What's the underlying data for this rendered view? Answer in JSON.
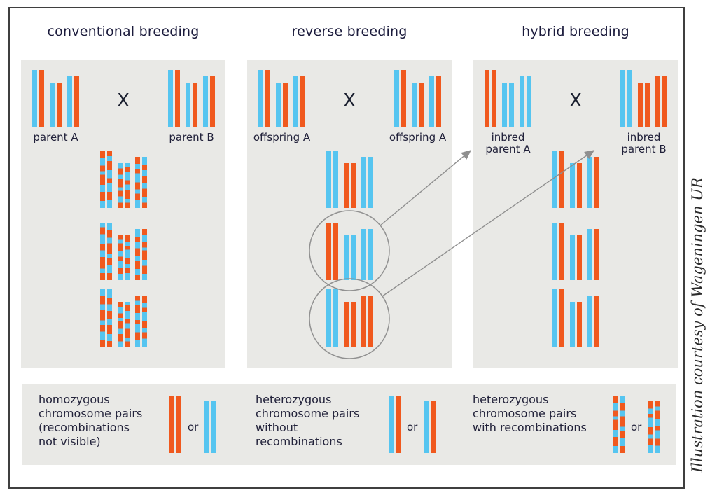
{
  "caption": "Illustration courtesy of Wageningen UR",
  "cross_symbol": "X",
  "or_label": "or",
  "colors": {
    "orange": "#F0591E",
    "blue": "#56C5F0",
    "panel_bg": "#E9E9E6",
    "frame_border": "#3F3F3F",
    "text": "#21213A",
    "annotation": "#8F8F8F"
  },
  "stripes": {
    "sA": [
      [
        "o",
        12
      ],
      [
        "b",
        14
      ],
      [
        "o",
        10
      ],
      [
        "b",
        6
      ],
      [
        "o",
        18
      ],
      [
        "b",
        12
      ],
      [
        "o",
        16
      ],
      [
        "b",
        12
      ]
    ],
    "sB": [
      [
        "o",
        10
      ],
      [
        "b",
        8
      ],
      [
        "o",
        16
      ],
      [
        "b",
        14
      ],
      [
        "o",
        8
      ],
      [
        "b",
        16
      ],
      [
        "o",
        14
      ],
      [
        "b",
        14
      ]
    ],
    "sC": [
      [
        "b",
        12
      ],
      [
        "o",
        14
      ],
      [
        "b",
        10
      ],
      [
        "o",
        18
      ],
      [
        "b",
        8
      ],
      [
        "o",
        12
      ],
      [
        "b",
        14
      ],
      [
        "o",
        12
      ]
    ],
    "sD": [
      [
        "b",
        8
      ],
      [
        "o",
        12
      ],
      [
        "b",
        18
      ],
      [
        "o",
        10
      ],
      [
        "b",
        12
      ],
      [
        "o",
        20
      ],
      [
        "b",
        8
      ],
      [
        "o",
        12
      ]
    ],
    "sE": [
      [
        "o",
        14
      ],
      [
        "b",
        10
      ],
      [
        "o",
        8
      ],
      [
        "b",
        18
      ],
      [
        "o",
        14
      ],
      [
        "b",
        8
      ],
      [
        "o",
        12
      ],
      [
        "b",
        16
      ]
    ],
    "sF": [
      [
        "b",
        16
      ],
      [
        "o",
        10
      ],
      [
        "b",
        12
      ],
      [
        "o",
        14
      ],
      [
        "b",
        10
      ],
      [
        "o",
        16
      ],
      [
        "b",
        12
      ],
      [
        "o",
        10
      ]
    ]
  },
  "panels": [
    {
      "id": "conventional",
      "title": "conventional breeding",
      "left_parent": {
        "label_lines": [
          "parent A"
        ],
        "pairs": [
          [
            "blue",
            "orange"
          ],
          [
            "blue",
            "orange"
          ],
          [
            "blue",
            "orange"
          ]
        ]
      },
      "right_parent": {
        "label_lines": [
          "parent B"
        ],
        "pairs": [
          [
            "blue",
            "orange"
          ],
          [
            "blue",
            "orange"
          ],
          [
            "blue",
            "orange"
          ]
        ]
      },
      "progeny_rows": [
        {
          "circled": false,
          "pairs": [
            [
              "sA",
              "sB"
            ],
            [
              "sC",
              "sD"
            ],
            [
              "sE",
              "sF"
            ]
          ]
        },
        {
          "circled": false,
          "pairs": [
            [
              "sD",
              "sC"
            ],
            [
              "sB",
              "sE"
            ],
            [
              "sF",
              "sA"
            ]
          ]
        },
        {
          "circled": false,
          "pairs": [
            [
              "sC",
              "sF"
            ],
            [
              "sA",
              "sD"
            ],
            [
              "sB",
              "sE"
            ]
          ]
        }
      ]
    },
    {
      "id": "reverse",
      "title": "reverse breeding",
      "left_parent": {
        "label_lines": [
          "offspring A"
        ],
        "pairs": [
          [
            "blue",
            "orange"
          ],
          [
            "blue",
            "orange"
          ],
          [
            "blue",
            "orange"
          ]
        ]
      },
      "right_parent": {
        "label_lines": [
          "offspring A"
        ],
        "pairs": [
          [
            "blue",
            "orange"
          ],
          [
            "blue",
            "orange"
          ],
          [
            "blue",
            "orange"
          ]
        ]
      },
      "progeny_rows": [
        {
          "circled": false,
          "pairs": [
            [
              "blue",
              "blue"
            ],
            [
              "orange",
              "orange"
            ],
            [
              "blue",
              "blue"
            ]
          ]
        },
        {
          "circled": true,
          "pairs": [
            [
              "orange",
              "orange"
            ],
            [
              "blue",
              "blue"
            ],
            [
              "blue",
              "blue"
            ]
          ]
        },
        {
          "circled": true,
          "pairs": [
            [
              "blue",
              "blue"
            ],
            [
              "orange",
              "orange"
            ],
            [
              "orange",
              "orange"
            ]
          ]
        }
      ]
    },
    {
      "id": "hybrid",
      "title": "hybrid breeding",
      "left_parent": {
        "label_lines": [
          "inbred",
          "parent A"
        ],
        "pairs": [
          [
            "orange",
            "orange"
          ],
          [
            "blue",
            "blue"
          ],
          [
            "blue",
            "blue"
          ]
        ]
      },
      "right_parent": {
        "label_lines": [
          "inbred",
          "parent B"
        ],
        "pairs": [
          [
            "blue",
            "blue"
          ],
          [
            "orange",
            "orange"
          ],
          [
            "orange",
            "orange"
          ]
        ]
      },
      "progeny_rows": [
        {
          "circled": false,
          "pairs": [
            [
              "blue",
              "orange"
            ],
            [
              "blue",
              "orange"
            ],
            [
              "blue",
              "orange"
            ]
          ]
        },
        {
          "circled": false,
          "pairs": [
            [
              "blue",
              "orange"
            ],
            [
              "blue",
              "orange"
            ],
            [
              "blue",
              "orange"
            ]
          ]
        },
        {
          "circled": false,
          "pairs": [
            [
              "blue",
              "orange"
            ],
            [
              "blue",
              "orange"
            ],
            [
              "blue",
              "orange"
            ]
          ]
        }
      ]
    }
  ],
  "legend": {
    "items": [
      {
        "lines": [
          "homozygous",
          "chromosome pairs",
          "(recombinations",
          "not visible)"
        ],
        "pair_a": [
          "orange",
          "orange"
        ],
        "pair_b": [
          "blue",
          "blue"
        ]
      },
      {
        "lines": [
          "heterozygous",
          "chromosome pairs",
          "without",
          "recombinations"
        ],
        "pair_a": [
          "blue",
          "orange"
        ],
        "pair_b": [
          "blue",
          "orange"
        ]
      },
      {
        "lines": [
          "heterozygous",
          "chromosome pairs",
          "with recombinations"
        ],
        "pair_a": [
          "sA",
          "sC"
        ],
        "pair_b": [
          "sE",
          "sB"
        ]
      }
    ]
  }
}
